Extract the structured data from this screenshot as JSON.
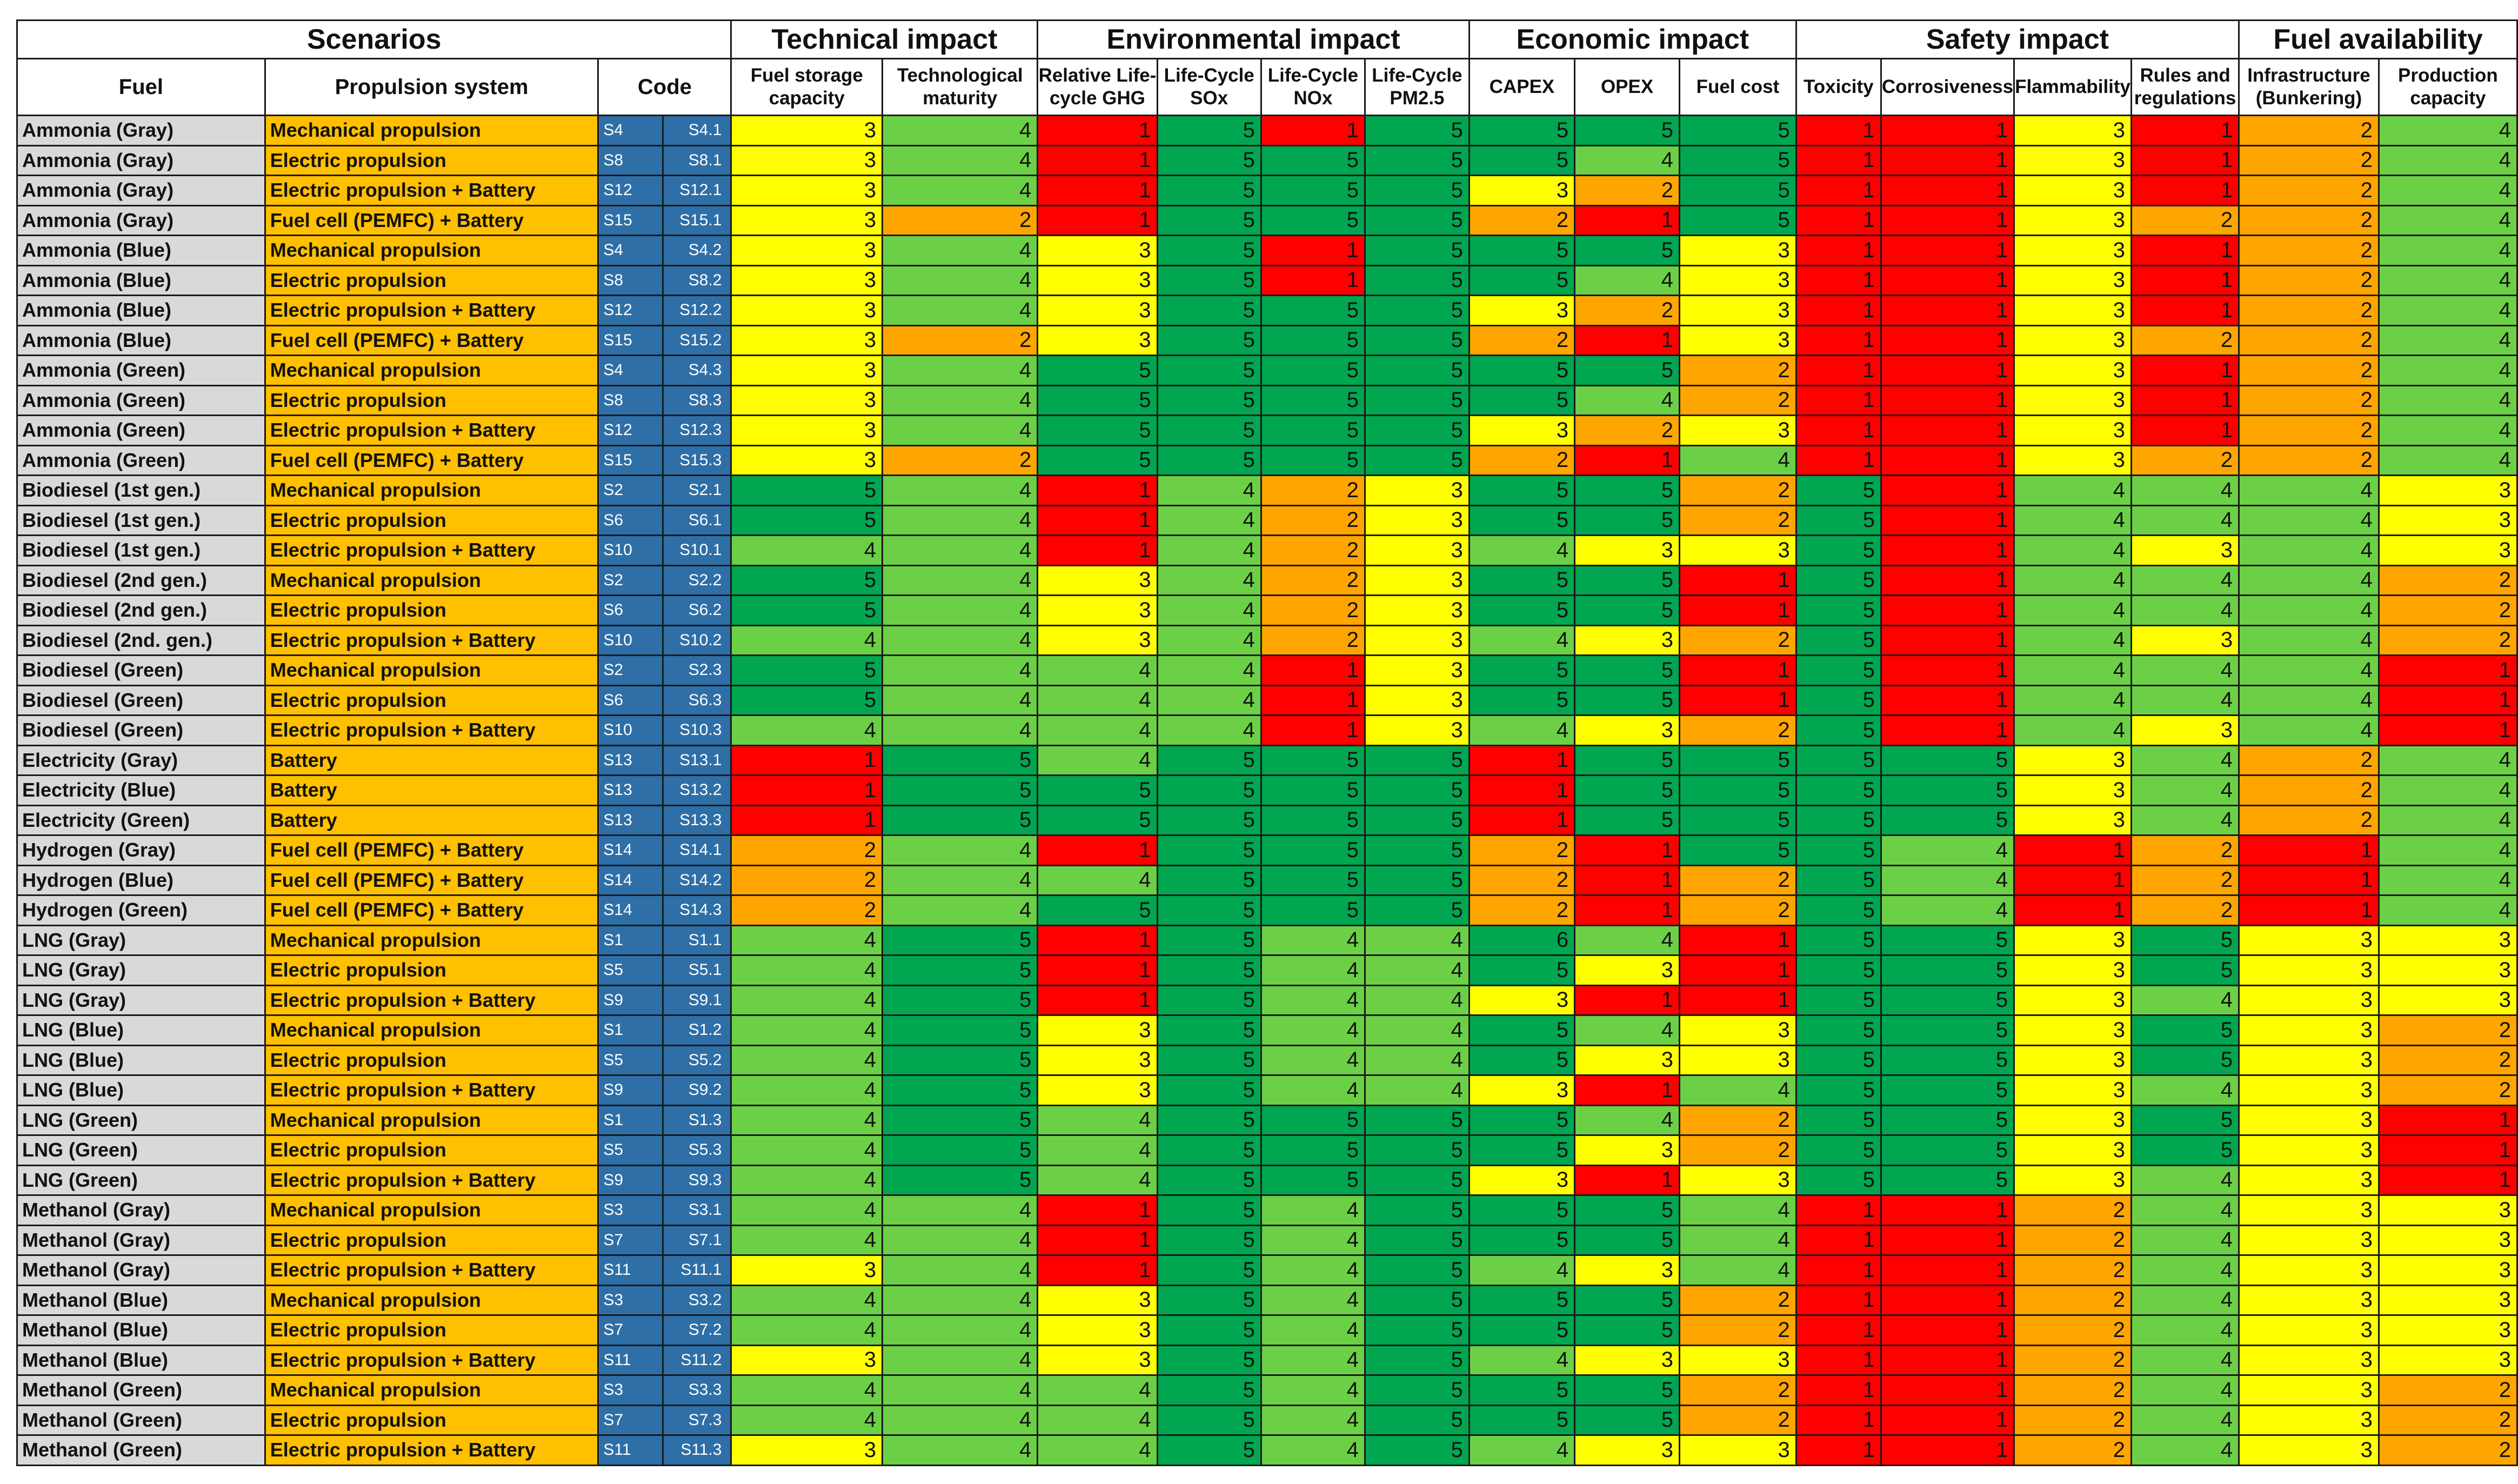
{
  "colors": {
    "1": "#ff0000",
    "2": "#ffa500",
    "3": "#ffff00",
    "4": "#6cd046",
    "5": "#00a650",
    "6": "#00a650"
  },
  "groups": [
    {
      "label": "Scenarios",
      "span": 4
    },
    {
      "label": "Technical impact",
      "span": 2
    },
    {
      "label": "Environmental impact",
      "span": 4
    },
    {
      "label": "Economic impact",
      "span": 3
    },
    {
      "label": "Safety impact",
      "span": 4
    },
    {
      "label": "Fuel availability",
      "span": 2
    }
  ],
  "columns": [
    "Fuel",
    "Propulsion system",
    "Code",
    "Fuel storage capacity",
    "Technological maturity",
    "Relative Life-cycle GHG",
    "Life-Cycle SOx",
    "Life-Cycle NOx",
    "Life-Cycle PM2.5",
    "CAPEX",
    "OPEX",
    "Fuel cost",
    "Toxicity",
    "Corrosiveness",
    "Flammability",
    "Rules and regulations",
    "Infrastructure (Bunkering)",
    "Production capacity"
  ],
  "chart_data": {
    "type": "table",
    "title": "",
    "rows": [
      {
        "fuel": "Ammonia (Gray)",
        "propulsion": "Mechanical propulsion",
        "code": "S4",
        "subcode": "S4.1",
        "scores": [
          3,
          4,
          1,
          5,
          1,
          5,
          5,
          5,
          5,
          1,
          1,
          3,
          1,
          2,
          4
        ]
      },
      {
        "fuel": "Ammonia (Gray)",
        "propulsion": "Electric propulsion",
        "code": "S8",
        "subcode": "S8.1",
        "scores": [
          3,
          4,
          1,
          5,
          5,
          5,
          5,
          4,
          5,
          1,
          1,
          3,
          1,
          2,
          4
        ]
      },
      {
        "fuel": "Ammonia (Gray)",
        "propulsion": "Electric propulsion + Battery",
        "code": "S12",
        "subcode": "S12.1",
        "scores": [
          3,
          4,
          1,
          5,
          5,
          5,
          3,
          2,
          5,
          1,
          1,
          3,
          1,
          2,
          4
        ]
      },
      {
        "fuel": "Ammonia (Gray)",
        "propulsion": "Fuel cell (PEMFC) + Battery",
        "code": "S15",
        "subcode": "S15.1",
        "scores": [
          3,
          2,
          1,
          5,
          5,
          5,
          2,
          1,
          5,
          1,
          1,
          3,
          2,
          2,
          4
        ]
      },
      {
        "fuel": "Ammonia (Blue)",
        "propulsion": "Mechanical propulsion",
        "code": "S4",
        "subcode": "S4.2",
        "scores": [
          3,
          4,
          3,
          5,
          1,
          5,
          5,
          5,
          3,
          1,
          1,
          3,
          1,
          2,
          4
        ]
      },
      {
        "fuel": "Ammonia (Blue)",
        "propulsion": "Electric propulsion",
        "code": "S8",
        "subcode": "S8.2",
        "scores": [
          3,
          4,
          3,
          5,
          1,
          5,
          5,
          4,
          3,
          1,
          1,
          3,
          1,
          2,
          4
        ]
      },
      {
        "fuel": "Ammonia (Blue)",
        "propulsion": "Electric propulsion + Battery",
        "code": "S12",
        "subcode": "S12.2",
        "scores": [
          3,
          4,
          3,
          5,
          5,
          5,
          3,
          2,
          3,
          1,
          1,
          3,
          1,
          2,
          4
        ]
      },
      {
        "fuel": "Ammonia (Blue)",
        "propulsion": "Fuel cell (PEMFC) + Battery",
        "code": "S15",
        "subcode": "S15.2",
        "scores": [
          3,
          2,
          3,
          5,
          5,
          5,
          2,
          1,
          3,
          1,
          1,
          3,
          2,
          2,
          4
        ]
      },
      {
        "fuel": "Ammonia (Green)",
        "propulsion": "Mechanical propulsion",
        "code": "S4",
        "subcode": "S4.3",
        "scores": [
          3,
          4,
          5,
          5,
          5,
          5,
          5,
          5,
          2,
          1,
          1,
          3,
          1,
          2,
          4
        ]
      },
      {
        "fuel": "Ammonia (Green)",
        "propulsion": "Electric propulsion",
        "code": "S8",
        "subcode": "S8.3",
        "scores": [
          3,
          4,
          5,
          5,
          5,
          5,
          5,
          4,
          2,
          1,
          1,
          3,
          1,
          2,
          4
        ]
      },
      {
        "fuel": "Ammonia  (Green)",
        "propulsion": "Electric propulsion  + Battery",
        "code": "S12",
        "subcode": "S12.3",
        "scores": [
          3,
          4,
          5,
          5,
          5,
          5,
          3,
          2,
          3,
          1,
          1,
          3,
          1,
          2,
          4
        ]
      },
      {
        "fuel": "Ammonia (Green)",
        "propulsion": "Fuel cell (PEMFC) + Battery",
        "code": "S15",
        "subcode": "S15.3",
        "scores": [
          3,
          2,
          5,
          5,
          5,
          5,
          2,
          1,
          4,
          1,
          1,
          3,
          2,
          2,
          4
        ]
      },
      {
        "fuel": "Biodiesel (1st gen.)",
        "propulsion": "Mechanical propulsion",
        "code": "S2",
        "subcode": "S2.1",
        "scores": [
          5,
          4,
          1,
          4,
          2,
          3,
          5,
          5,
          2,
          5,
          1,
          4,
          4,
          4,
          3
        ]
      },
      {
        "fuel": "Biodiesel (1st gen.)",
        "propulsion": "Electric propulsion",
        "code": "S6",
        "subcode": "S6.1",
        "scores": [
          5,
          4,
          1,
          4,
          2,
          3,
          5,
          5,
          2,
          5,
          1,
          4,
          4,
          4,
          3
        ]
      },
      {
        "fuel": "Biodiesel (1st gen.)",
        "propulsion": "Electric propulsion  + Battery",
        "code": "S10",
        "subcode": "S10.1",
        "scores": [
          4,
          4,
          1,
          4,
          2,
          3,
          4,
          3,
          3,
          5,
          1,
          4,
          3,
          4,
          3
        ]
      },
      {
        "fuel": "Biodiesel (2nd gen.)",
        "propulsion": "Mechanical propulsion",
        "code": "S2",
        "subcode": "S2.2",
        "scores": [
          5,
          4,
          3,
          4,
          2,
          3,
          5,
          5,
          1,
          5,
          1,
          4,
          4,
          4,
          2
        ]
      },
      {
        "fuel": "Biodiesel (2nd gen.)",
        "propulsion": "Electric propulsion",
        "code": "S6",
        "subcode": "S6.2",
        "scores": [
          5,
          4,
          3,
          4,
          2,
          3,
          5,
          5,
          1,
          5,
          1,
          4,
          4,
          4,
          2
        ]
      },
      {
        "fuel": "Biodiesel (2nd. gen.)",
        "propulsion": "Electric propulsion  + Battery",
        "code": "S10",
        "subcode": "S10.2",
        "scores": [
          4,
          4,
          3,
          4,
          2,
          3,
          4,
          3,
          2,
          5,
          1,
          4,
          3,
          4,
          2
        ]
      },
      {
        "fuel": "Biodiesel  (Green)",
        "propulsion": "Mechanical propulsion",
        "code": "S2",
        "subcode": "S2.3",
        "scores": [
          5,
          4,
          4,
          4,
          1,
          3,
          5,
          5,
          1,
          5,
          1,
          4,
          4,
          4,
          1
        ]
      },
      {
        "fuel": "Biodiesel  (Green)",
        "propulsion": "Electric propulsion",
        "code": "S6",
        "subcode": "S6.3",
        "scores": [
          5,
          4,
          4,
          4,
          1,
          3,
          5,
          5,
          1,
          5,
          1,
          4,
          4,
          4,
          1
        ]
      },
      {
        "fuel": "Biodiesel  (Green)",
        "propulsion": "Electric propulsion  + Battery",
        "code": "S10",
        "subcode": "S10.3",
        "scores": [
          4,
          4,
          4,
          4,
          1,
          3,
          4,
          3,
          2,
          5,
          1,
          4,
          3,
          4,
          1
        ]
      },
      {
        "fuel": "Electricity (Gray)",
        "propulsion": "Battery",
        "code": "S13",
        "subcode": "S13.1",
        "scores": [
          1,
          5,
          4,
          5,
          5,
          5,
          1,
          5,
          5,
          5,
          5,
          3,
          4,
          2,
          4
        ]
      },
      {
        "fuel": "Electricity (Blue)",
        "propulsion": "Battery",
        "code": "S13",
        "subcode": "S13.2",
        "scores": [
          1,
          5,
          5,
          5,
          5,
          5,
          1,
          5,
          5,
          5,
          5,
          3,
          4,
          2,
          4
        ]
      },
      {
        "fuel": "Electricity (Green)",
        "propulsion": "Battery",
        "code": "S13",
        "subcode": "S13.3",
        "scores": [
          1,
          5,
          5,
          5,
          5,
          5,
          1,
          5,
          5,
          5,
          5,
          3,
          4,
          2,
          4
        ]
      },
      {
        "fuel": "Hydrogen (Gray)",
        "propulsion": "Fuel cell (PEMFC) + Battery",
        "code": "S14",
        "subcode": "S14.1",
        "scores": [
          2,
          4,
          1,
          5,
          5,
          5,
          2,
          1,
          5,
          5,
          4,
          1,
          2,
          1,
          4
        ]
      },
      {
        "fuel": "Hydrogen (Blue)",
        "propulsion": "Fuel cell (PEMFC) + Battery",
        "code": "S14",
        "subcode": "S14.2",
        "scores": [
          2,
          4,
          4,
          5,
          5,
          5,
          2,
          1,
          2,
          5,
          4,
          1,
          2,
          1,
          4
        ]
      },
      {
        "fuel": "Hydrogen (Green)",
        "propulsion": "Fuel cell (PEMFC) + Battery",
        "code": "S14",
        "subcode": "S14.3",
        "scores": [
          2,
          4,
          5,
          5,
          5,
          5,
          2,
          1,
          2,
          5,
          4,
          1,
          2,
          1,
          4
        ]
      },
      {
        "fuel": "LNG (Gray)",
        "propulsion": "Mechanical propulsion",
        "code": "S1",
        "subcode": "S1.1",
        "scores": [
          4,
          5,
          1,
          5,
          4,
          4,
          6,
          4,
          1,
          5,
          5,
          3,
          5,
          3,
          3
        ]
      },
      {
        "fuel": "LNG (Gray)",
        "propulsion": "Electric propulsion",
        "code": "S5",
        "subcode": "S5.1",
        "scores": [
          4,
          5,
          1,
          5,
          4,
          4,
          5,
          3,
          1,
          5,
          5,
          3,
          5,
          3,
          3
        ]
      },
      {
        "fuel": "LNG (Gray)",
        "propulsion": "Electric propulsion  + Battery",
        "code": "S9",
        "subcode": "S9.1",
        "scores": [
          4,
          5,
          1,
          5,
          4,
          4,
          3,
          1,
          1,
          5,
          5,
          3,
          4,
          3,
          3
        ]
      },
      {
        "fuel": "LNG (Blue)",
        "propulsion": "Mechanical propulsion",
        "code": "S1",
        "subcode": "S1.2",
        "scores": [
          4,
          5,
          3,
          5,
          4,
          4,
          5,
          4,
          3,
          5,
          5,
          3,
          5,
          3,
          2
        ]
      },
      {
        "fuel": "LNG (Blue)",
        "propulsion": "Electric propulsion",
        "code": "S5",
        "subcode": "S5.2",
        "scores": [
          4,
          5,
          3,
          5,
          4,
          4,
          5,
          3,
          3,
          5,
          5,
          3,
          5,
          3,
          2
        ]
      },
      {
        "fuel": "LNG (Blue)",
        "propulsion": "Electric propulsion  + Battery",
        "code": "S9",
        "subcode": "S9.2",
        "scores": [
          4,
          5,
          3,
          5,
          4,
          4,
          3,
          1,
          4,
          5,
          5,
          3,
          4,
          3,
          2
        ]
      },
      {
        "fuel": "LNG (Green)",
        "propulsion": "Mechanical propulsion",
        "code": "S1",
        "subcode": "S1.3",
        "scores": [
          4,
          5,
          4,
          5,
          5,
          5,
          5,
          4,
          2,
          5,
          5,
          3,
          5,
          3,
          1
        ]
      },
      {
        "fuel": "LNG  (Green)",
        "propulsion": "Electric propulsion",
        "code": "S5",
        "subcode": "S5.3",
        "scores": [
          4,
          5,
          4,
          5,
          5,
          5,
          5,
          3,
          2,
          5,
          5,
          3,
          5,
          3,
          1
        ]
      },
      {
        "fuel": "LNG  (Green)",
        "propulsion": "Electric propulsion  + Battery",
        "code": "S9",
        "subcode": "S9.3",
        "scores": [
          4,
          5,
          4,
          5,
          5,
          5,
          3,
          1,
          3,
          5,
          5,
          3,
          4,
          3,
          1
        ]
      },
      {
        "fuel": "Methanol (Gray)",
        "propulsion": "Mechanical propulsion",
        "code": "S3",
        "subcode": "S3.1",
        "scores": [
          4,
          4,
          1,
          5,
          4,
          5,
          5,
          5,
          4,
          1,
          1,
          2,
          4,
          3,
          3
        ]
      },
      {
        "fuel": "Methanol (Gray)",
        "propulsion": "Electric propulsion",
        "code": "S7",
        "subcode": "S7.1",
        "scores": [
          4,
          4,
          1,
          5,
          4,
          5,
          5,
          5,
          4,
          1,
          1,
          2,
          4,
          3,
          3
        ]
      },
      {
        "fuel": "Methanol (Gray)",
        "propulsion": "Electric propulsion  + Battery",
        "code": "S11",
        "subcode": "S11.1",
        "scores": [
          3,
          4,
          1,
          5,
          4,
          5,
          4,
          3,
          4,
          1,
          1,
          2,
          4,
          3,
          3
        ]
      },
      {
        "fuel": "Methanol (Blue)",
        "propulsion": "Mechanical propulsion",
        "code": "S3",
        "subcode": "S3.2",
        "scores": [
          4,
          4,
          3,
          5,
          4,
          5,
          5,
          5,
          2,
          1,
          1,
          2,
          4,
          3,
          3
        ]
      },
      {
        "fuel": "Methanol (Blue)",
        "propulsion": "Electric propulsion",
        "code": "S7",
        "subcode": "S7.2",
        "scores": [
          4,
          4,
          3,
          5,
          4,
          5,
          5,
          5,
          2,
          1,
          1,
          2,
          4,
          3,
          3
        ]
      },
      {
        "fuel": "Methanol (Blue)",
        "propulsion": "Electric propulsion  + Battery",
        "code": "S11",
        "subcode": "S11.2",
        "scores": [
          3,
          4,
          3,
          5,
          4,
          5,
          4,
          3,
          3,
          1,
          1,
          2,
          4,
          3,
          3
        ]
      },
      {
        "fuel": "Methanol (Green)",
        "propulsion": "Mechanical propulsion",
        "code": "S3",
        "subcode": "S3.3",
        "scores": [
          4,
          4,
          4,
          5,
          4,
          5,
          5,
          5,
          2,
          1,
          1,
          2,
          4,
          3,
          2
        ]
      },
      {
        "fuel": "Methanol (Green)",
        "propulsion": "Electric propulsion",
        "code": "S7",
        "subcode": "S7.3",
        "scores": [
          4,
          4,
          4,
          5,
          4,
          5,
          5,
          5,
          2,
          1,
          1,
          2,
          4,
          3,
          2
        ]
      },
      {
        "fuel": "Methanol (Green)",
        "propulsion": "Electric propulsion  + Battery",
        "code": "S11",
        "subcode": "S11.3",
        "scores": [
          3,
          4,
          4,
          5,
          4,
          5,
          4,
          3,
          3,
          1,
          1,
          2,
          4,
          3,
          2
        ]
      }
    ]
  }
}
